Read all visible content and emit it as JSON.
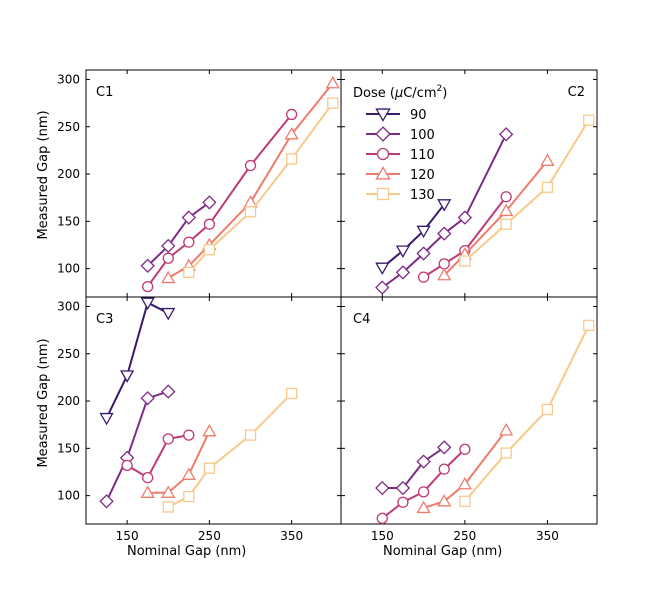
{
  "figure": {
    "xlabel": "Nominal Gap (nm)",
    "ylabel": "Measured Gap (nm)",
    "legend_title": "Dose (μC/cm²)",
    "legend_title_main": "Dose (",
    "legend_title_mu": "μ",
    "legend_title_unit": "C/cm",
    "legend_title_sup": "2",
    "legend_title_close": ")"
  },
  "chart_data": [
    {
      "panel": "C1",
      "type": "line",
      "xlim": [
        100,
        410
      ],
      "ylim": [
        70,
        310
      ],
      "xticks": [
        150,
        250,
        350
      ],
      "yticks": [
        100,
        150,
        200,
        250,
        300
      ],
      "series": [
        {
          "name": "100",
          "points": [
            [
              175,
              103
            ],
            [
              200,
              124
            ],
            [
              225,
              154
            ],
            [
              250,
              170
            ]
          ]
        },
        {
          "name": "110",
          "points": [
            [
              175,
              81
            ],
            [
              200,
              111
            ],
            [
              225,
              128
            ],
            [
              250,
              147
            ],
            [
              300,
              209
            ],
            [
              350,
              263
            ]
          ]
        },
        {
          "name": "120",
          "points": [
            [
              200,
              90
            ],
            [
              225,
              103
            ],
            [
              250,
              125
            ],
            [
              300,
              170
            ],
            [
              350,
              242
            ],
            [
              400,
              296
            ]
          ]
        },
        {
          "name": "130",
          "points": [
            [
              225,
              96
            ],
            [
              250,
              120
            ],
            [
              300,
              160
            ],
            [
              350,
              216
            ],
            [
              400,
              275
            ]
          ]
        }
      ]
    },
    {
      "panel": "C2",
      "type": "line",
      "xlim": [
        100,
        410
      ],
      "ylim": [
        70,
        310
      ],
      "xticks": [
        150,
        250,
        350
      ],
      "yticks": [
        100,
        150,
        200,
        250,
        300
      ],
      "series": [
        {
          "name": "90",
          "points": [
            [
              150,
              101
            ],
            [
              175,
              119
            ],
            [
              200,
              140
            ],
            [
              225,
              168
            ]
          ]
        },
        {
          "name": "100",
          "points": [
            [
              150,
              80
            ],
            [
              175,
              96
            ],
            [
              200,
              116
            ],
            [
              225,
              137
            ],
            [
              250,
              154
            ],
            [
              300,
              242
            ]
          ]
        },
        {
          "name": "110",
          "points": [
            [
              200,
              91
            ],
            [
              225,
              105
            ],
            [
              250,
              119
            ],
            [
              300,
              176
            ]
          ]
        },
        {
          "name": "120",
          "points": [
            [
              225,
              93
            ],
            [
              250,
              115
            ],
            [
              300,
              161
            ],
            [
              350,
              214
            ]
          ]
        },
        {
          "name": "130",
          "points": [
            [
              250,
              108
            ],
            [
              300,
              147
            ],
            [
              350,
              186
            ],
            [
              400,
              257
            ]
          ]
        }
      ]
    },
    {
      "panel": "C3",
      "type": "line",
      "xlim": [
        100,
        410
      ],
      "ylim": [
        70,
        310
      ],
      "xticks": [
        150,
        250,
        350
      ],
      "yticks": [
        100,
        150,
        200,
        250,
        300
      ],
      "series": [
        {
          "name": "90",
          "points": [
            [
              125,
              182
            ],
            [
              150,
              227
            ],
            [
              175,
              304
            ],
            [
              200,
              293
            ]
          ]
        },
        {
          "name": "100",
          "points": [
            [
              125,
              94
            ],
            [
              150,
              140
            ],
            [
              175,
              203
            ],
            [
              200,
              210
            ]
          ]
        },
        {
          "name": "110",
          "points": [
            [
              150,
              132
            ],
            [
              175,
              119
            ],
            [
              200,
              160
            ],
            [
              225,
              164
            ]
          ]
        },
        {
          "name": "120",
          "points": [
            [
              175,
              103
            ],
            [
              200,
              103
            ],
            [
              225,
              122
            ],
            [
              250,
              168
            ]
          ]
        },
        {
          "name": "130",
          "points": [
            [
              200,
              88
            ],
            [
              225,
              99
            ],
            [
              250,
              129
            ],
            [
              300,
              164
            ],
            [
              350,
              208
            ]
          ]
        }
      ]
    },
    {
      "panel": "C4",
      "type": "line",
      "xlim": [
        100,
        410
      ],
      "ylim": [
        70,
        310
      ],
      "xticks": [
        150,
        250,
        350
      ],
      "yticks": [
        100,
        150,
        200,
        250,
        300
      ],
      "series": [
        {
          "name": "100",
          "points": [
            [
              150,
              108
            ],
            [
              175,
              108
            ],
            [
              200,
              136
            ],
            [
              225,
              151
            ]
          ]
        },
        {
          "name": "110",
          "points": [
            [
              150,
              76
            ],
            [
              175,
              93
            ],
            [
              200,
              104
            ],
            [
              225,
              128
            ],
            [
              250,
              149
            ]
          ]
        },
        {
          "name": "120",
          "points": [
            [
              200,
              87
            ],
            [
              225,
              94
            ],
            [
              250,
              112
            ],
            [
              300,
              169
            ]
          ]
        },
        {
          "name": "130",
          "points": [
            [
              250,
              94
            ],
            [
              300,
              145
            ],
            [
              350,
              191
            ],
            [
              400,
              280
            ]
          ]
        }
      ]
    }
  ],
  "legend": [
    {
      "name": "90",
      "color": "#3b1a6b",
      "marker": "triangle-down"
    },
    {
      "name": "100",
      "color": "#7e2b86",
      "marker": "diamond"
    },
    {
      "name": "110",
      "color": "#bf3a78",
      "marker": "circle"
    },
    {
      "name": "120",
      "color": "#ef7b6c",
      "marker": "triangle-up"
    },
    {
      "name": "130",
      "color": "#f9c98a",
      "marker": "square"
    }
  ]
}
